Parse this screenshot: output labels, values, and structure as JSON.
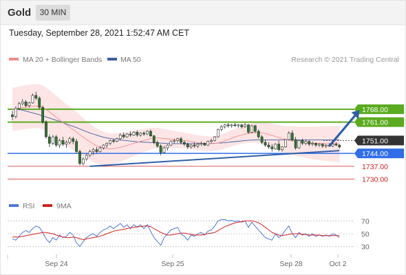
{
  "header": {
    "symbol": "Gold",
    "timeframe": "30 MIN"
  },
  "datetime": "Tuesday, September 28, 2021 1:52:47 AM CET",
  "legend": {
    "ma_bb": "MA 20 + Bollinger Bands",
    "ma50": "MA 50",
    "credit": "Research © 2021 Trading Central",
    "rsi": "RSI",
    "rsi_ma": "9MA"
  },
  "colors": {
    "resistance": "#5aab1e",
    "support": "#2f6ee8",
    "current": "#333333",
    "minor_level": "#d42020",
    "bollinger_fill": "#fde0e0",
    "ma20": "#f48b8b",
    "ma50": "#3a5ba0",
    "trendline": "#2e5fa8",
    "candle_up": "#ffffff",
    "candle_down": "#2a7a2a",
    "rsi": "#4a78d8",
    "rsi_ma": "#d42020",
    "arrow": "#2e5fa8"
  },
  "chart_data": [
    {
      "type": "candlestick",
      "title": "Gold",
      "x_ticks": [
        "Sep 24",
        "Sep 25",
        "Sep 28",
        "Oct 2"
      ],
      "ylim": [
        1722,
        1790
      ],
      "levels": [
        {
          "value": 1768.0,
          "label": "1768.00",
          "kind": "resistance"
        },
        {
          "value": 1761.0,
          "label": "1761.00",
          "kind": "resistance"
        },
        {
          "value": 1751.0,
          "label": "1751.00",
          "kind": "current"
        },
        {
          "value": 1744.0,
          "label": "1744.00",
          "kind": "support"
        },
        {
          "value": 1737.0,
          "label": "1737.00",
          "kind": "minor"
        },
        {
          "value": 1730.0,
          "label": "1730.00",
          "kind": "minor"
        }
      ],
      "candles": [
        [
          1765.0,
          1767.0,
          1762.0,
          1764.0
        ],
        [
          1764.0,
          1769.5,
          1763.0,
          1768.5
        ],
        [
          1768.5,
          1772.0,
          1767.5,
          1771.0
        ],
        [
          1771.0,
          1773.5,
          1770.0,
          1772.0
        ],
        [
          1772.0,
          1773.0,
          1769.0,
          1770.0
        ],
        [
          1770.0,
          1772.0,
          1769.0,
          1771.5
        ],
        [
          1771.5,
          1776.5,
          1771.0,
          1775.5
        ],
        [
          1775.5,
          1777.5,
          1773.0,
          1774.0
        ],
        [
          1774.0,
          1775.0,
          1768.0,
          1769.0
        ],
        [
          1769.0,
          1770.0,
          1760.0,
          1761.0
        ],
        [
          1761.0,
          1762.0,
          1752.0,
          1753.0
        ],
        [
          1753.0,
          1754.5,
          1747.5,
          1749.5
        ],
        [
          1749.5,
          1754.0,
          1748.5,
          1753.0
        ],
        [
          1753.0,
          1754.0,
          1747.5,
          1748.5
        ],
        [
          1748.5,
          1752.0,
          1747.0,
          1751.0
        ],
        [
          1751.0,
          1753.0,
          1748.0,
          1749.0
        ],
        [
          1749.0,
          1751.0,
          1747.0,
          1750.0
        ],
        [
          1750.0,
          1753.0,
          1749.0,
          1752.0
        ],
        [
          1752.0,
          1753.0,
          1749.0,
          1750.5
        ],
        [
          1750.5,
          1752.0,
          1744.0,
          1745.0
        ],
        [
          1745.0,
          1746.0,
          1737.5,
          1738.5
        ],
        [
          1738.5,
          1742.0,
          1737.5,
          1741.0
        ],
        [
          1741.0,
          1744.0,
          1740.0,
          1743.0
        ],
        [
          1743.0,
          1746.0,
          1742.0,
          1745.0
        ],
        [
          1745.0,
          1747.0,
          1743.0,
          1746.0
        ],
        [
          1746.0,
          1747.5,
          1744.0,
          1745.0
        ],
        [
          1745.0,
          1748.0,
          1744.5,
          1747.0
        ],
        [
          1747.0,
          1749.0,
          1746.0,
          1748.5
        ],
        [
          1748.5,
          1750.0,
          1747.0,
          1749.5
        ],
        [
          1749.5,
          1751.5,
          1748.5,
          1751.0
        ],
        [
          1751.0,
          1752.0,
          1749.5,
          1750.5
        ],
        [
          1750.5,
          1752.5,
          1750.0,
          1752.0
        ],
        [
          1752.0,
          1755.0,
          1751.0,
          1754.0
        ],
        [
          1754.0,
          1755.5,
          1752.0,
          1753.0
        ],
        [
          1753.0,
          1755.0,
          1752.5,
          1754.5
        ],
        [
          1754.5,
          1756.0,
          1753.0,
          1754.0
        ],
        [
          1754.0,
          1756.0,
          1753.5,
          1755.5
        ],
        [
          1755.5,
          1756.5,
          1753.0,
          1754.0
        ],
        [
          1754.0,
          1755.5,
          1753.0,
          1755.0
        ],
        [
          1755.0,
          1756.0,
          1753.5,
          1754.5
        ],
        [
          1754.5,
          1756.5,
          1754.0,
          1756.0
        ],
        [
          1756.0,
          1757.0,
          1753.0,
          1753.5
        ],
        [
          1753.5,
          1754.0,
          1749.0,
          1750.0
        ],
        [
          1750.0,
          1751.0,
          1747.0,
          1748.0
        ],
        [
          1748.0,
          1749.0,
          1743.0,
          1744.5
        ],
        [
          1744.5,
          1748.0,
          1744.0,
          1747.0
        ],
        [
          1747.0,
          1749.0,
          1745.5,
          1748.5
        ],
        [
          1748.5,
          1751.0,
          1748.0,
          1750.5
        ],
        [
          1750.5,
          1752.0,
          1749.5,
          1751.0
        ],
        [
          1751.0,
          1752.5,
          1750.0,
          1752.0
        ],
        [
          1752.0,
          1753.0,
          1749.0,
          1750.0
        ],
        [
          1750.0,
          1751.0,
          1748.0,
          1749.0
        ],
        [
          1749.0,
          1750.0,
          1746.5,
          1747.5
        ],
        [
          1747.5,
          1749.0,
          1746.5,
          1748.5
        ],
        [
          1748.5,
          1750.0,
          1747.0,
          1748.0
        ],
        [
          1748.0,
          1749.5,
          1747.0,
          1749.0
        ],
        [
          1749.0,
          1750.5,
          1748.0,
          1749.5
        ],
        [
          1749.5,
          1750.0,
          1748.0,
          1748.5
        ],
        [
          1748.5,
          1751.0,
          1748.0,
          1750.5
        ],
        [
          1750.5,
          1752.0,
          1749.5,
          1751.0
        ],
        [
          1751.0,
          1753.5,
          1750.5,
          1753.0
        ],
        [
          1753.0,
          1757.5,
          1752.5,
          1757.0
        ],
        [
          1757.0,
          1759.5,
          1756.0,
          1758.5
        ],
        [
          1758.5,
          1760.0,
          1757.5,
          1759.5
        ],
        [
          1759.5,
          1760.5,
          1758.0,
          1759.0
        ],
        [
          1759.0,
          1760.0,
          1758.0,
          1759.5
        ],
        [
          1759.5,
          1760.5,
          1758.5,
          1759.0
        ],
        [
          1759.0,
          1760.0,
          1758.0,
          1759.5
        ],
        [
          1759.5,
          1760.0,
          1757.5,
          1758.5
        ],
        [
          1758.5,
          1760.5,
          1758.0,
          1759.5
        ],
        [
          1759.5,
          1760.0,
          1754.5,
          1755.5
        ],
        [
          1755.5,
          1759.5,
          1755.0,
          1759.0
        ],
        [
          1759.0,
          1759.5,
          1755.0,
          1756.0
        ],
        [
          1756.0,
          1757.0,
          1752.0,
          1753.0
        ],
        [
          1753.0,
          1754.0,
          1749.0,
          1750.0
        ],
        [
          1750.0,
          1751.5,
          1747.5,
          1748.5
        ],
        [
          1748.5,
          1750.0,
          1746.5,
          1747.5
        ],
        [
          1747.5,
          1749.0,
          1745.0,
          1746.5
        ],
        [
          1746.5,
          1749.5,
          1746.0,
          1749.0
        ],
        [
          1749.0,
          1751.0,
          1745.0,
          1746.0
        ],
        [
          1746.0,
          1748.0,
          1745.0,
          1747.5
        ],
        [
          1747.5,
          1752.0,
          1747.0,
          1751.5
        ],
        [
          1751.5,
          1756.0,
          1751.0,
          1755.0
        ],
        [
          1755.0,
          1756.5,
          1750.5,
          1751.5
        ],
        [
          1751.5,
          1753.0,
          1746.0,
          1747.0
        ],
        [
          1747.0,
          1751.5,
          1746.5,
          1751.0
        ],
        [
          1751.0,
          1752.0,
          1748.5,
          1749.5
        ],
        [
          1749.5,
          1751.5,
          1748.5,
          1750.5
        ],
        [
          1750.5,
          1751.0,
          1748.0,
          1749.0
        ],
        [
          1749.0,
          1750.5,
          1748.0,
          1749.5
        ],
        [
          1749.5,
          1750.0,
          1747.5,
          1748.5
        ],
        [
          1748.5,
          1749.5,
          1747.5,
          1749.0
        ],
        [
          1749.0,
          1749.5,
          1747.0,
          1748.0
        ],
        [
          1748.0,
          1749.0,
          1747.0,
          1748.5
        ],
        [
          1748.5,
          1749.5,
          1747.5,
          1748.0
        ],
        [
          1748.0,
          1749.5,
          1747.5,
          1749.0
        ],
        [
          1749.0,
          1750.0,
          1748.0,
          1748.5
        ],
        [
          1748.5,
          1749.0,
          1746.5,
          1747.5
        ]
      ],
      "trendline": [
        [
          23,
          1737.0
        ],
        [
          97,
          1745.5
        ]
      ],
      "projection": [
        [
          94,
          1748.0
        ],
        [
          103,
          1767.5
        ]
      ],
      "series": [
        {
          "name": "MA 50",
          "values": [
            1768.0,
            1768.0,
            1767.8,
            1767.5,
            1767.0,
            1766.5,
            1766.0,
            1765.5,
            1765.0,
            1764.4,
            1763.8,
            1763.2,
            1762.6,
            1762.0,
            1761.4,
            1760.7,
            1760.0,
            1759.3,
            1758.7,
            1758.0,
            1757.3,
            1756.5,
            1755.8,
            1755.1,
            1754.5,
            1753.9,
            1753.3,
            1752.8,
            1752.4,
            1752.1,
            1751.8,
            1751.5,
            1751.3,
            1751.1,
            1750.9,
            1750.7,
            1750.5,
            1750.3,
            1750.2,
            1750.1,
            1750.0,
            1749.9,
            1749.8,
            1749.7,
            1749.6,
            1749.5,
            1749.4,
            1749.3,
            1749.3,
            1749.3,
            1749.3,
            1749.3,
            1749.3,
            1749.3,
            1749.3,
            1749.3,
            1749.3,
            1749.3,
            1749.3,
            1749.4,
            1749.5,
            1749.6,
            1749.7,
            1749.8,
            1750.0,
            1750.2,
            1750.4,
            1750.6,
            1750.8,
            1751.0,
            1751.1,
            1751.2,
            1751.3,
            1751.3,
            1751.3,
            1751.3,
            1751.3,
            1751.3,
            1751.3,
            1751.3,
            1751.3,
            1751.3,
            1751.3,
            1751.3,
            1751.3,
            1751.3,
            1751.3,
            1751.3,
            1751.3,
            1751.3,
            1751.3,
            1751.3,
            1751.3,
            1751.3,
            1751.3,
            1751.3,
            1751.3,
            1751.3
          ]
        },
        {
          "name": "MA 20 + Bollinger Bands",
          "values": [
            1768.0,
            1768.2,
            1768.5,
            1768.9,
            1769.2,
            1769.4,
            1769.6,
            1769.7,
            1769.5,
            1768.9,
            1767.9,
            1766.5,
            1765.1,
            1763.6,
            1762.2,
            1760.8,
            1759.5,
            1758.2,
            1757.0,
            1755.7,
            1754.2,
            1752.8,
            1751.5,
            1750.3,
            1749.1,
            1748.1,
            1747.3,
            1746.8,
            1746.6,
            1746.5,
            1746.6,
            1746.9,
            1747.3,
            1747.8,
            1748.3,
            1748.9,
            1749.5,
            1750.0,
            1750.5,
            1751.0,
            1751.5,
            1752.0,
            1752.3,
            1752.4,
            1752.3,
            1752.1,
            1751.9,
            1751.7,
            1751.5,
            1751.3,
            1751.2,
            1751.0,
            1750.7,
            1750.4,
            1750.1,
            1749.8,
            1749.6,
            1749.4,
            1749.3,
            1749.3,
            1749.4,
            1749.7,
            1750.2,
            1750.8,
            1751.5,
            1752.2,
            1752.9,
            1753.5,
            1754.0,
            1754.5,
            1754.8,
            1755.1,
            1755.3,
            1755.3,
            1755.1,
            1754.8,
            1754.3,
            1753.8,
            1753.2,
            1752.6,
            1752.0,
            1751.5,
            1751.2,
            1750.9,
            1750.6,
            1750.4,
            1750.2,
            1750.0,
            1749.8,
            1749.6,
            1749.5,
            1749.4,
            1749.4,
            1749.3,
            1749.3,
            1749.3,
            1749.3,
            1749.2
          ]
        },
        {
          "name": "RSI",
          "values": [
            42,
            40,
            46,
            52,
            55,
            52,
            58,
            62,
            60,
            52,
            42,
            36,
            44,
            40,
            48,
            44,
            46,
            52,
            48,
            36,
            30,
            38,
            44,
            48,
            50,
            46,
            52,
            56,
            58,
            62,
            58,
            62,
            66,
            60,
            64,
            58,
            64,
            60,
            64,
            58,
            64,
            54,
            44,
            38,
            32,
            44,
            50,
            56,
            58,
            60,
            50,
            46,
            40,
            48,
            46,
            50,
            52,
            48,
            54,
            56,
            62,
            70,
            72,
            72,
            70,
            71,
            69,
            70,
            68,
            70,
            60,
            68,
            62,
            56,
            50,
            44,
            42,
            40,
            50,
            44,
            48,
            56,
            62,
            50,
            44,
            52,
            48,
            50,
            46,
            50,
            46,
            48,
            46,
            48,
            46,
            50,
            48,
            44
          ]
        },
        {
          "name": "9MA",
          "values": [
            45,
            45,
            45,
            46,
            47,
            48,
            49,
            50,
            51,
            52,
            52,
            51,
            50,
            48,
            46,
            45,
            44,
            44,
            45,
            44,
            42,
            41,
            42,
            43,
            44,
            45,
            46,
            48,
            50,
            52,
            54,
            55,
            56,
            57,
            58,
            59,
            60,
            61,
            61,
            62,
            62,
            61,
            58,
            55,
            52,
            50,
            48,
            48,
            49,
            50,
            51,
            51,
            50,
            49,
            48,
            48,
            48,
            49,
            50,
            51,
            52,
            55,
            58,
            61,
            63,
            65,
            67,
            68,
            69,
            70,
            70,
            70,
            69,
            67,
            64,
            60,
            56,
            52,
            50,
            48,
            47,
            48,
            49,
            50,
            50,
            50,
            49,
            49,
            48,
            48,
            48,
            48,
            47,
            47,
            47,
            47,
            47,
            47
          ]
        }
      ]
    },
    {
      "type": "line",
      "title": "RSI",
      "ylim": [
        20,
        80
      ],
      "y_ticks": [
        "70",
        "50",
        "30"
      ],
      "levels": [
        70,
        50,
        30
      ]
    }
  ]
}
